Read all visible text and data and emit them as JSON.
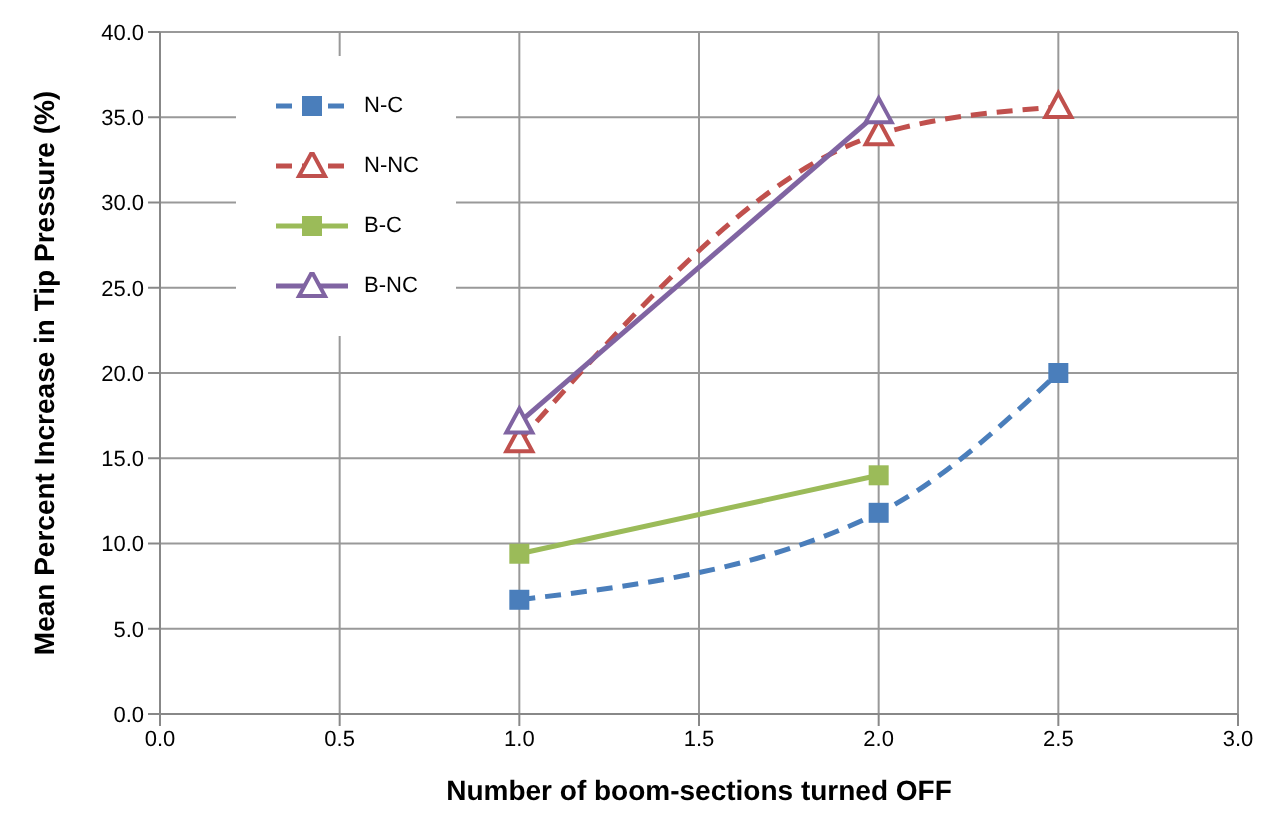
{
  "chart_data": {
    "type": "line",
    "xlabel": "Number of boom-sections turned OFF",
    "ylabel": "Mean Percent Increase in Tip Pressure (%)",
    "xlim": [
      0,
      3
    ],
    "xticks": [
      {
        "value": 0,
        "label": "0.0"
      },
      {
        "value": 0.5,
        "label": "0.5"
      },
      {
        "value": 1,
        "label": "1.0"
      },
      {
        "value": 1.5,
        "label": "1.5"
      },
      {
        "value": 2,
        "label": "2.0"
      },
      {
        "value": 2.5,
        "label": "2.5"
      },
      {
        "value": 3,
        "label": "3.0"
      }
    ],
    "ylim": [
      0,
      40
    ],
    "yticks": [
      {
        "value": 0,
        "label": "0.0"
      },
      {
        "value": 5,
        "label": "5.0"
      },
      {
        "value": 10,
        "label": "10.0"
      },
      {
        "value": 15,
        "label": "15.0"
      },
      {
        "value": 20,
        "label": "20.0"
      },
      {
        "value": 25,
        "label": "25.0"
      },
      {
        "value": 30,
        "label": "30.0"
      },
      {
        "value": 35,
        "label": "35.0"
      },
      {
        "value": 40,
        "label": "40.0"
      }
    ],
    "grid": true,
    "legend": "top left",
    "series": [
      {
        "name": "N-C",
        "color": "#4a7ebb",
        "x": [
          1,
          2,
          2.5
        ],
        "values": [
          6.7,
          11.8,
          20.0
        ],
        "marker": "square",
        "line_style": "dashed"
      },
      {
        "name": "N-NC",
        "color": "#c0504d",
        "x": [
          1,
          2,
          2.5
        ],
        "values": [
          16.0,
          34.0,
          35.6
        ],
        "marker": "triangle",
        "line_style": "dashed"
      },
      {
        "name": "B-C",
        "color": "#9bbb59",
        "x": [
          1,
          2
        ],
        "values": [
          9.4,
          14.0
        ],
        "marker": "square",
        "line_style": "solid"
      },
      {
        "name": "B-NC",
        "color": "#8064a2",
        "x": [
          1,
          2
        ],
        "values": [
          17.1,
          35.3
        ],
        "marker": "triangle",
        "line_style": "solid"
      }
    ]
  }
}
